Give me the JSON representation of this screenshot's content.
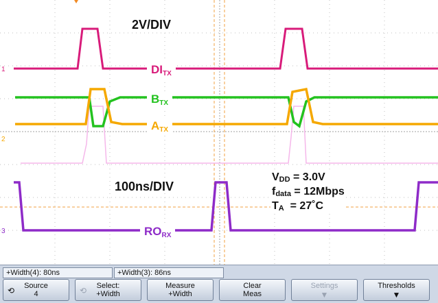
{
  "scale": {
    "volts": "2V/DIV",
    "time": "100ns/DIV"
  },
  "channels": {
    "di": {
      "name": "DI",
      "sub": "TX",
      "color": "#d81b7a"
    },
    "b": {
      "name": "B",
      "sub": "TX",
      "color": "#23c21f"
    },
    "a": {
      "name": "A",
      "sub": "TX",
      "color": "#f5a800"
    },
    "ro": {
      "name": "RO",
      "sub": "RX",
      "color": "#8e2bc8"
    }
  },
  "conditions": {
    "vdd": {
      "sym": "V",
      "sub": "DD",
      "val": " = 3.0V"
    },
    "fdata": {
      "sym": "f",
      "sub": "data",
      "val": " = 12Mbps"
    },
    "ta": {
      "sym": "T",
      "sub": "A",
      "val": "  = 27˚C"
    }
  },
  "measurements": [
    "+Width(4): 80ns",
    "+Width(3): 86ns"
  ],
  "softkeys": [
    {
      "l1": "Source",
      "l2": "4",
      "icon": "rotate-knob-icon"
    },
    {
      "l1": "Select:",
      "l2": "+Width",
      "icon": "rotate-knob-icon"
    },
    {
      "l1": "Measure",
      "l2": "+Width"
    },
    {
      "l1": "Clear",
      "l2": "Meas"
    },
    {
      "l1": "Settings",
      "icon": "down-arrow-icon"
    },
    {
      "l1": "Thresholds",
      "icon": "down-arrow-icon"
    }
  ]
}
